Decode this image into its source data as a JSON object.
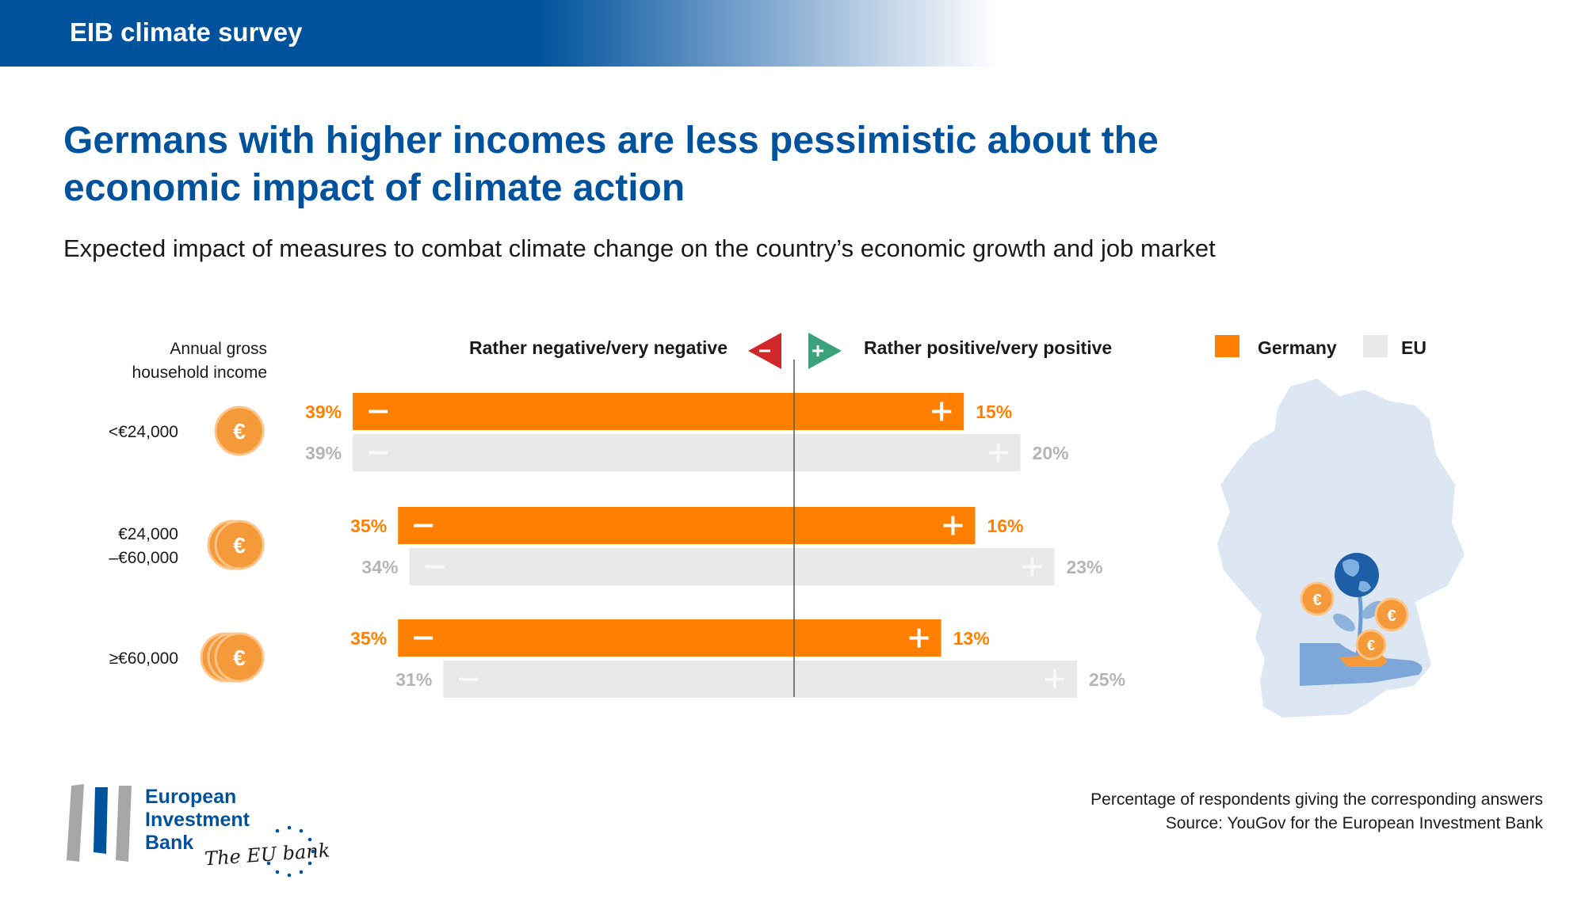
{
  "header": {
    "banner_title": "EIB climate survey"
  },
  "title_line1": "Germans with higher incomes are less pessimistic about the",
  "title_line2": "economic impact of climate action",
  "subtitle": "Expected impact of measures to combat climate change on the country’s economic growth and job market",
  "income_header_line1": "Annual gross",
  "income_header_line2": "household income",
  "negative_header": "Rather negative/very negative",
  "positive_header": "Rather positive/very positive",
  "colors": {
    "germany": "#ff8000",
    "eu": "#e9e9e9",
    "eu_text": "#b5b5b5",
    "accent": "#00529c",
    "negative_marker": "#d0282a",
    "positive_marker": "#3aa17a"
  },
  "chart_data": {
    "type": "bar",
    "orientation": "horizontal-diverging",
    "title": "Germans with higher incomes are less pessimistic about the economic impact of climate action",
    "subtitle": "Expected impact of measures to combat climate change on the country’s economic growth and job market",
    "categories": [
      "<€24,000",
      "€24,000 –€60,000",
      "≥60,000"
    ],
    "category_lines": [
      [
        "<€24,000"
      ],
      [
        "€24,000",
        "–€60,000"
      ],
      [
        "≥€60,000"
      ]
    ],
    "series": [
      {
        "name": "Germany",
        "negative": [
          39,
          35,
          35
        ],
        "positive": [
          15,
          16,
          13
        ],
        "negative_labels": [
          "39%",
          "35%",
          "35%"
        ],
        "positive_labels": [
          "15%",
          "16%",
          "13%"
        ]
      },
      {
        "name": "EU",
        "negative": [
          39,
          34,
          31
        ],
        "positive": [
          20,
          23,
          25
        ],
        "negative_labels": [
          "39%",
          "34%",
          "31%"
        ],
        "positive_labels": [
          "20%",
          "23%",
          "25%"
        ]
      }
    ],
    "legend_position": "top-right",
    "grid": false
  },
  "legend": {
    "germany": "Germany",
    "eu": "EU"
  },
  "footnote_line1": "Percentage of respondents giving the corresponding answers",
  "footnote_line2": "Source: YouGov for the European Investment Bank",
  "logo": {
    "line1": "European",
    "line2": "Investment",
    "line3": "Bank",
    "tagline": "The EU bank"
  },
  "icons": {
    "coin": "euro-coin-icon",
    "map": "germany-map-icon",
    "plant": "globe-plant-hand-icon"
  }
}
